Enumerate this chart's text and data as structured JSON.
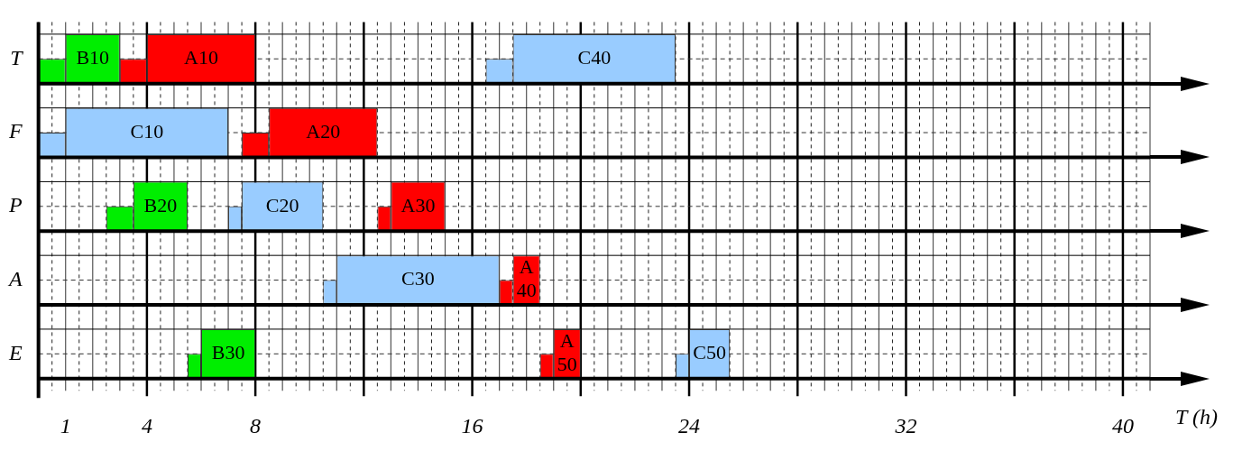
{
  "chart_data": {
    "type": "bar",
    "orientation": "horizontal",
    "xlabel": "T (h)",
    "categories": [
      "T",
      "F",
      "P",
      "A",
      "E"
    ],
    "xlim": [
      0,
      41
    ],
    "xticks": [
      1,
      4,
      8,
      {
        "value": 12,
        "label": null
      },
      16,
      {
        "value": 20,
        "label": null
      },
      24,
      {
        "value": 28,
        "label": null
      },
      32,
      {
        "value": 36,
        "label": null
      },
      40
    ],
    "grid": true,
    "legend": false,
    "series": [
      {
        "base": [
          1,
          1,
          3.5,
          11,
          6
        ],
        "values": [
          2,
          6,
          2,
          6,
          2
        ],
        "colors": [
          "#00ee00",
          "#99ccff",
          "#00ee00",
          "#99ccff",
          "#00ee00"
        ],
        "value_labels": [
          "B10",
          "C10",
          "B20",
          "C30",
          "B30"
        ]
      },
      {
        "base": [
          0,
          0,
          2.5,
          10.5,
          5.5
        ],
        "values": [
          1,
          1,
          1,
          0.5,
          0.5
        ],
        "colors": [
          "#00ee00",
          "#99ccff",
          "#00ee00",
          "#99ccff",
          "#00ee00"
        ]
      },
      {
        "base": [
          4,
          8.5,
          7.5,
          17.5,
          19
        ],
        "values": [
          4,
          4,
          3,
          1,
          1
        ],
        "colors": [
          "#ff0000",
          "#ff0000",
          "#99ccff",
          "#ff0000",
          "#ff0000"
        ],
        "value_labels": [
          "A10",
          "A20",
          "C20",
          "A40",
          "A50"
        ]
      },
      {
        "base": [
          3,
          7.5,
          7,
          17,
          18.5
        ],
        "values": [
          1,
          1,
          0.5,
          0.5,
          0.5
        ],
        "colors": [
          "#ff0000",
          "#ff0000",
          "#99ccff",
          "#ff0000",
          "#ff0000"
        ]
      },
      {
        "base": [
          17.5,
          null,
          13,
          null,
          24
        ],
        "values": [
          6,
          null,
          2,
          null,
          1.5
        ],
        "colors": [
          "#99ccff",
          null,
          "#ff0000",
          null,
          "#99ccff"
        ],
        "value_labels": [
          "C40",
          null,
          "A30",
          null,
          "C50"
        ]
      },
      {
        "base": [
          16.5,
          null,
          12.5,
          null,
          23.5
        ],
        "values": [
          1,
          null,
          0.5,
          null,
          0.5
        ],
        "colors": [
          "#99ccff",
          null,
          "#ff0000",
          null,
          "#99ccff"
        ]
      }
    ]
  }
}
